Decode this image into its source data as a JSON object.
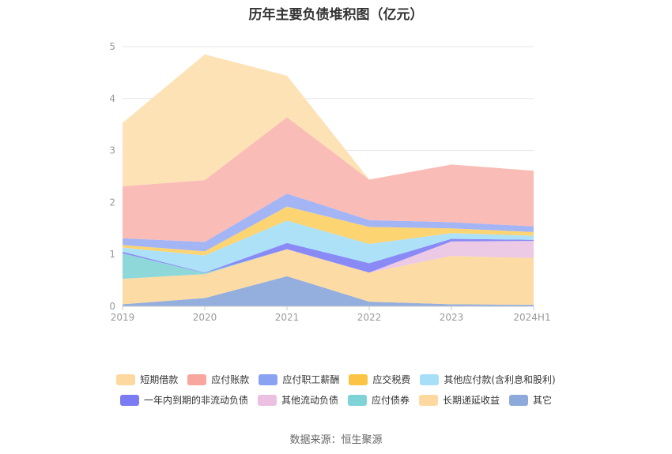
{
  "chart_data": {
    "type": "area",
    "stacked": true,
    "title": "历年主要负债堆积图（亿元）",
    "source": "数据来源：恒生聚源",
    "categories": [
      "2019",
      "2020",
      "2021",
      "2022",
      "2023",
      "2024H1"
    ],
    "ylim": [
      0,
      5
    ],
    "yticks": [
      "0",
      "1",
      "2",
      "3",
      "4",
      "5"
    ],
    "grid": true,
    "legend_position": "bottom",
    "series": [
      {
        "name": "其它",
        "color": "#8eaadb",
        "values": [
          0.04,
          0.16,
          0.58,
          0.09,
          0.04,
          0.03
        ]
      },
      {
        "name": "长期递延收益",
        "color": "#fdd9a0",
        "values": [
          0.49,
          0.46,
          0.52,
          0.56,
          0.93,
          0.9
        ]
      },
      {
        "name": "应付债券",
        "color": "#88d6d8",
        "values": [
          0.49,
          0.02,
          0.0,
          0.0,
          0.0,
          0.0
        ]
      },
      {
        "name": "其他流动负债",
        "color": "#ebc6e3",
        "values": [
          0.0,
          0.0,
          0.0,
          0.0,
          0.28,
          0.33
        ]
      },
      {
        "name": "一年内到期的非流动负债",
        "color": "#8484f5",
        "values": [
          0.03,
          0.01,
          0.12,
          0.18,
          0.05,
          0.02
        ]
      },
      {
        "name": "其他应付款(含利息和股利)",
        "color": "#a8dff8",
        "values": [
          0.08,
          0.33,
          0.43,
          0.37,
          0.11,
          0.08
        ]
      },
      {
        "name": "应交税费",
        "color": "#fdd26a",
        "values": [
          0.05,
          0.08,
          0.27,
          0.33,
          0.09,
          0.07
        ]
      },
      {
        "name": "应付职工薪酬",
        "color": "#9fb1f5",
        "values": [
          0.13,
          0.18,
          0.25,
          0.13,
          0.12,
          0.11
        ]
      },
      {
        "name": "应付账款",
        "color": "#fab8b2",
        "values": [
          1.0,
          1.19,
          1.47,
          0.78,
          1.11,
          1.07
        ]
      },
      {
        "name": "短期借款",
        "color": "#fde0b2",
        "values": [
          1.22,
          2.42,
          0.8,
          0.0,
          0.0,
          0.0
        ]
      }
    ]
  },
  "legend": {
    "row1": [
      {
        "label": "短期借款",
        "color": "#fdd9a0"
      },
      {
        "label": "应付账款",
        "color": "#f8a79e"
      },
      {
        "label": "应付职工薪酬",
        "color": "#8aa2f2"
      },
      {
        "label": "应交税费",
        "color": "#fcc444"
      },
      {
        "label": "其他应付款(含利息和股利)",
        "color": "#a8dff8"
      }
    ],
    "row2": [
      {
        "label": "一年内到期的非流动负债",
        "color": "#7b7bf3"
      },
      {
        "label": "其他流动负债",
        "color": "#ebc0e2"
      },
      {
        "label": "应付债券",
        "color": "#7fd3d6"
      },
      {
        "label": "长期递延收益",
        "color": "#fdd9a0"
      },
      {
        "label": "其它",
        "color": "#8eaadb"
      }
    ]
  }
}
